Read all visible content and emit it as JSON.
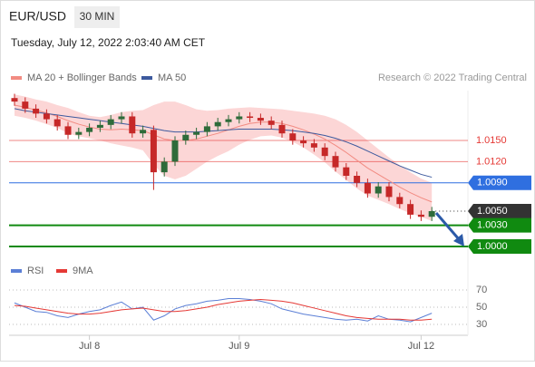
{
  "header": {
    "symbol": "EUR/USD",
    "interval": "30 MIN",
    "datetime": "Tuesday, July 12, 2022 2:03:40 AM CET",
    "credit": "Research © 2022 Trading Central"
  },
  "chart_data": [
    {
      "type": "candlestick",
      "categories": [
        null,
        null,
        null,
        null,
        null,
        null,
        null,
        "Jul 8",
        null,
        null,
        null,
        null,
        null,
        null,
        null,
        null,
        null,
        null,
        null,
        null,
        null,
        "Jul 9",
        null,
        null,
        null,
        null,
        null,
        null,
        null,
        null,
        null,
        null,
        null,
        null,
        null,
        null,
        null,
        null,
        "Jul 12",
        null
      ],
      "open": [
        1.021,
        1.0205,
        1.0195,
        1.0188,
        1.018,
        1.017,
        1.0158,
        1.0162,
        1.0168,
        1.0172,
        1.018,
        1.0184,
        1.016,
        1.0165,
        1.0105,
        1.012,
        1.015,
        1.0158,
        1.0162,
        1.017,
        1.0176,
        1.018,
        1.0184,
        1.0182,
        1.0178,
        1.0172,
        1.016,
        1.015,
        1.0146,
        1.014,
        1.0128,
        1.0112,
        1.01,
        1.009,
        1.0075,
        1.0085,
        1.007,
        1.006,
        1.0045,
        1.0042
      ],
      "high": [
        1.0216,
        1.0211,
        1.0201,
        1.0194,
        1.0186,
        1.0176,
        1.0168,
        1.0174,
        1.0178,
        1.0186,
        1.019,
        1.019,
        1.0171,
        1.0171,
        1.0126,
        1.0156,
        1.0164,
        1.0168,
        1.0176,
        1.0182,
        1.0186,
        1.019,
        1.019,
        1.0188,
        1.0184,
        1.0178,
        1.0166,
        1.0156,
        1.0152,
        1.0146,
        1.0134,
        1.0118,
        1.0106,
        1.0096,
        1.0091,
        1.0091,
        1.0076,
        1.0066,
        1.0051,
        1.0056
      ],
      "low": [
        1.0199,
        1.0189,
        1.0182,
        1.0174,
        1.0164,
        1.0152,
        1.0152,
        1.0156,
        1.0162,
        1.0166,
        1.0174,
        1.0154,
        1.0154,
        1.008,
        1.0099,
        1.0114,
        1.0144,
        1.0152,
        1.0156,
        1.0164,
        1.017,
        1.0174,
        1.0176,
        1.0172,
        1.0166,
        1.0154,
        1.0144,
        1.014,
        1.0134,
        1.0122,
        1.0106,
        1.0094,
        1.0084,
        1.0069,
        1.0069,
        1.0064,
        1.0054,
        1.0039,
        1.0036,
        1.0036
      ],
      "close": [
        1.0205,
        1.0195,
        1.0188,
        1.018,
        1.017,
        1.0158,
        1.0162,
        1.0168,
        1.0172,
        1.018,
        1.0184,
        1.016,
        1.0165,
        1.0105,
        1.012,
        1.015,
        1.0158,
        1.0162,
        1.017,
        1.0176,
        1.018,
        1.0184,
        1.0182,
        1.0178,
        1.0172,
        1.016,
        1.015,
        1.0146,
        1.014,
        1.0128,
        1.0112,
        1.01,
        1.009,
        1.0075,
        1.0085,
        1.007,
        1.006,
        1.0045,
        1.0042,
        1.005
      ],
      "up_color": "#2e6b3a",
      "down_color": "#c62828",
      "series": [
        {
          "name": "MA 20 + Bollinger Bands",
          "color": "#f28b82",
          "band_color": "#fcd6d6",
          "values": [
            1.02,
            1.0197,
            1.0193,
            1.0189,
            1.0184,
            1.0178,
            1.0173,
            1.0169,
            1.0166,
            1.0165,
            1.0166,
            1.0165,
            1.0164,
            1.0158,
            1.0152,
            1.015,
            1.015,
            1.0152,
            1.0156,
            1.016,
            1.0165,
            1.017,
            1.0174,
            1.0176,
            1.0176,
            1.0174,
            1.017,
            1.0165,
            1.0159,
            1.0152,
            1.0143,
            1.0133,
            1.0122,
            1.0111,
            1.0102,
            1.0093,
            1.0084,
            1.0076,
            1.0069,
            1.0063
          ],
          "upper": [
            1.0215,
            1.0212,
            1.0208,
            1.0205,
            1.02,
            1.0196,
            1.019,
            1.0185,
            1.0183,
            1.0186,
            1.019,
            1.0192,
            1.0193,
            1.02,
            1.0205,
            1.0205,
            1.02,
            1.0194,
            1.0192,
            1.0193,
            1.0195,
            1.0196,
            1.0197,
            1.0196,
            1.0195,
            1.0194,
            1.0192,
            1.019,
            1.0188,
            1.0185,
            1.018,
            1.0172,
            1.0162,
            1.015,
            1.0138,
            1.0126,
            1.0115,
            1.0105,
            1.0096,
            1.009
          ],
          "lower": [
            1.0185,
            1.0182,
            1.0178,
            1.0173,
            1.0168,
            1.016,
            1.0156,
            1.0153,
            1.015,
            1.0146,
            1.0143,
            1.014,
            1.0136,
            1.0116,
            1.01,
            1.0095,
            1.01,
            1.011,
            1.012,
            1.0128,
            1.0135,
            1.0144,
            1.0151,
            1.0156,
            1.0157,
            1.0154,
            1.0148,
            1.014,
            1.013,
            1.0119,
            1.0106,
            1.0094,
            1.0082,
            1.0072,
            1.0066,
            1.006,
            1.0053,
            1.0047,
            1.0042,
            1.0036
          ]
        },
        {
          "name": "MA 50",
          "color": "#3d5a9e",
          "values": [
            1.0195,
            1.0192,
            1.019,
            1.0188,
            1.0186,
            1.0184,
            1.0182,
            1.018,
            1.0178,
            1.0176,
            1.0174,
            1.0172,
            1.017,
            1.0167,
            1.0164,
            1.0162,
            1.0162,
            1.0162,
            1.0163,
            1.0164,
            1.0165,
            1.0166,
            1.0166,
            1.0166,
            1.0166,
            1.0165,
            1.0164,
            1.0162,
            1.016,
            1.0157,
            1.0153,
            1.0148,
            1.0142,
            1.0135,
            1.0128,
            1.0121,
            1.0114,
            1.0108,
            1.0102,
            1.0098
          ]
        }
      ],
      "levels": [
        {
          "value": 1.015,
          "label": "1.0150",
          "color": "#e53935",
          "style": "text"
        },
        {
          "value": 1.012,
          "label": "1.0120",
          "color": "#e53935",
          "style": "text"
        },
        {
          "value": 1.009,
          "label": "1.0090",
          "color": "#2f6fe0",
          "style": "box"
        },
        {
          "value": 1.005,
          "label": "1.0050",
          "color": "#333333",
          "style": "dotted"
        },
        {
          "value": 1.003,
          "label": "1.0030",
          "color": "#108a10",
          "style": "box"
        },
        {
          "value": 1.0,
          "label": "1.0000",
          "color": "#108a10",
          "style": "box"
        }
      ],
      "ylim": [
        0.998,
        1.022
      ]
    },
    {
      "type": "line",
      "series": [
        {
          "name": "RSI",
          "color": "#5b7fd6",
          "values": [
            55,
            50,
            45,
            44,
            40,
            38,
            42,
            45,
            47,
            52,
            56,
            48,
            50,
            35,
            40,
            48,
            52,
            54,
            57,
            58,
            60,
            60,
            59,
            57,
            54,
            48,
            45,
            42,
            40,
            38,
            36,
            35,
            36,
            34,
            40,
            36,
            35,
            33,
            38,
            43
          ]
        },
        {
          "name": "9MA",
          "color": "#e53935",
          "values": [
            52,
            51,
            49,
            47,
            45,
            43,
            42,
            42,
            43,
            45,
            47,
            48,
            49,
            47,
            45,
            45,
            46,
            48,
            50,
            53,
            55,
            57,
            58,
            59,
            58,
            57,
            55,
            52,
            49,
            46,
            43,
            40,
            38,
            37,
            36,
            36,
            36,
            35,
            35,
            36
          ]
        }
      ],
      "ylim": [
        20,
        80
      ],
      "yticks": [
        30,
        50,
        70
      ],
      "grid": true
    }
  ]
}
